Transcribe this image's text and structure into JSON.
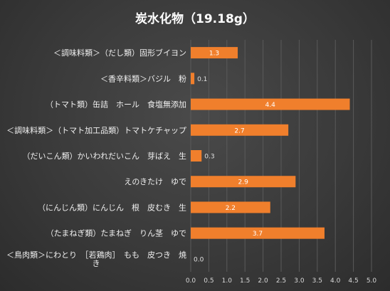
{
  "chart_data": {
    "type": "bar",
    "orientation": "horizontal",
    "title": "炭水化物（19.18g）",
    "categories": [
      "＜調味料類＞（だし類）固形ブイヨン",
      "＜香辛料類＞バジル　粉",
      "（トマト類）缶詰　ホール　食塩無添加",
      "＜調味料類＞（トマト加工品類）トマトケチャップ",
      "（だいこん類）かいわれだいこん　芽ばえ　生",
      "えのきたけ　ゆで",
      "（にんじん類）にんじん　根　皮むき　生",
      "（たまねぎ類）たまねぎ　りん茎　ゆで",
      "＜鳥肉類＞にわとり　［若鶏肉］　もも　皮つき　焼き"
    ],
    "values": [
      1.3,
      0.1,
      4.4,
      2.7,
      0.3,
      2.9,
      2.2,
      3.7,
      0.0
    ],
    "value_labels": [
      "1.3",
      "0.1",
      "4.4",
      "2.7",
      "0.3",
      "2.9",
      "2.2",
      "3.7",
      "0.0"
    ],
    "xlim": [
      0,
      5.0
    ],
    "xticks": [
      "0.0",
      "0.5",
      "1.0",
      "1.5",
      "2.0",
      "2.5",
      "3.0",
      "3.5",
      "4.0",
      "4.5",
      "5.0"
    ],
    "grid": true,
    "legend": "none",
    "bar_color": "#f07f2c",
    "grid_color": "#5a5a5a"
  }
}
